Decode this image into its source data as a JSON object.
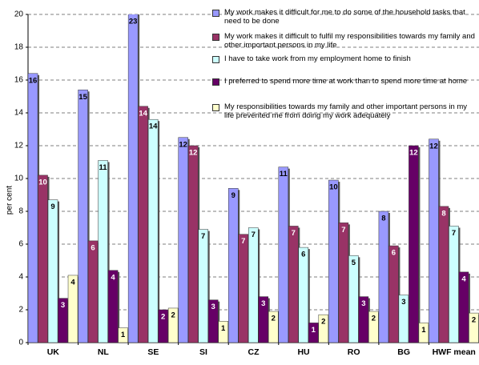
{
  "chart_data": {
    "type": "bar",
    "ylabel": "per cent",
    "categories": [
      "UK",
      "NL",
      "SE",
      "SI",
      "CZ",
      "HU",
      "RO",
      "BG",
      "HWF mean"
    ],
    "ylim": [
      0,
      20
    ],
    "yticks": [
      0,
      2,
      4,
      6,
      8,
      10,
      12,
      14,
      16,
      18,
      20
    ],
    "grid": true,
    "series": [
      {
        "name": "My work makes it difficult for me to do some of the household tasks that need to be done",
        "color": "#9999ff",
        "values": [
          16.4,
          15.4,
          23,
          12.5,
          9.4,
          10.7,
          9.9,
          8.0,
          12.4
        ],
        "value_labels": [
          "16",
          "15",
          "23",
          "12",
          "9",
          "11",
          "10",
          "8",
          "12"
        ]
      },
      {
        "name": "My work makes it difficult to fulfil my responsibilities towards my family and other important persons in my life",
        "color": "#993366",
        "values": [
          10.2,
          6.2,
          14.4,
          12.0,
          6.6,
          7.1,
          7.3,
          5.9,
          8.3
        ],
        "value_labels": [
          "10",
          "6",
          "14",
          "12",
          "7",
          "7",
          "7",
          "6",
          "8"
        ]
      },
      {
        "name": "I have to take work from my employment home to finish",
        "color": "#ccffff",
        "values": [
          8.7,
          11.1,
          13.6,
          6.9,
          7.0,
          5.8,
          5.3,
          2.9,
          7.1
        ],
        "value_labels": [
          "9",
          "11",
          "14",
          "7",
          "7",
          "6",
          "5",
          "3",
          "7"
        ]
      },
      {
        "name": "I preferred to spend more time at work than to spend more time at home",
        "color": "#660066",
        "values": [
          2.7,
          4.4,
          2.0,
          2.6,
          2.8,
          1.2,
          2.8,
          12.0,
          4.3
        ],
        "value_labels": [
          "3",
          "4",
          "2",
          "3",
          "3",
          "1",
          "3",
          "12",
          "4"
        ]
      },
      {
        "name": "My responsibilities towards my family and other important persons in my life prevented me from doing my work adequately",
        "color": "#ffffcc",
        "values": [
          4.1,
          0.9,
          2.1,
          1.3,
          1.9,
          1.7,
          1.9,
          1.2,
          1.8
        ],
        "value_labels": [
          "4",
          "1",
          "2",
          "1",
          "2",
          "2",
          "2",
          "1",
          "2"
        ]
      }
    ]
  }
}
